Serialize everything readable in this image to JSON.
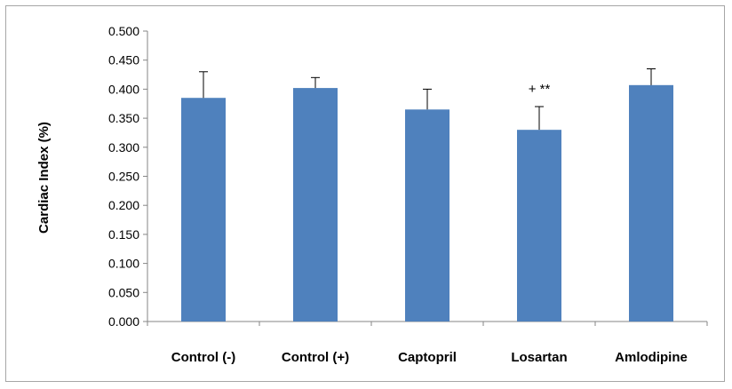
{
  "chart_data": {
    "type": "bar",
    "title": "",
    "xlabel": "",
    "ylabel": "Cardiac Index (%)",
    "ylim": [
      0,
      0.5
    ],
    "yticks": [
      "0.000",
      "0.050",
      "0.100",
      "0.150",
      "0.200",
      "0.250",
      "0.300",
      "0.350",
      "0.400",
      "0.450",
      "0.500"
    ],
    "categories": [
      "Control (-)",
      "Control (+)",
      "Captopril",
      "Losartan",
      "Amlodipine"
    ],
    "values": [
      0.385,
      0.402,
      0.365,
      0.33,
      0.407
    ],
    "errors": [
      0.045,
      0.018,
      0.035,
      0.04,
      0.028
    ],
    "bar_color": "#4f81bd",
    "grid": false,
    "legend": "none",
    "annotations": [
      {
        "category": "Losartan",
        "text": "+ **"
      }
    ]
  }
}
